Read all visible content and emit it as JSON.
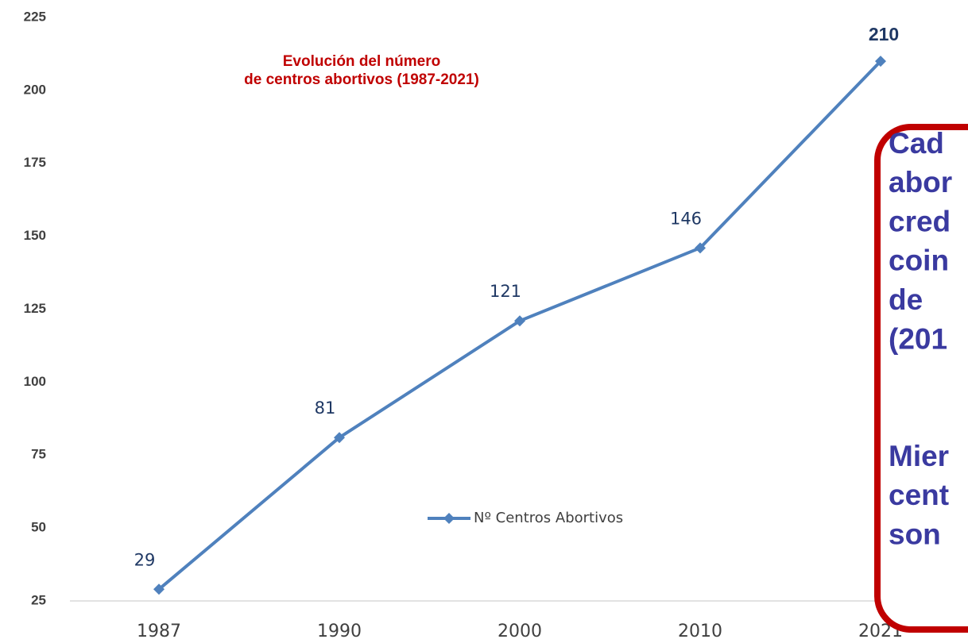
{
  "chart_data": {
    "type": "line",
    "title": [
      "Evolución del número",
      "de centros abortivos (1987-2021)"
    ],
    "categories": [
      "1987",
      "1990",
      "2000",
      "2010",
      "2021"
    ],
    "series": [
      {
        "name": "Nº Centros Abortivos",
        "color": "#4f81bd",
        "values": [
          29,
          81,
          121,
          146,
          210
        ]
      }
    ],
    "ylim": [
      25,
      225
    ],
    "yticks": [
      25,
      50,
      75,
      100,
      125,
      150,
      175,
      200,
      225
    ],
    "grid": false,
    "legend": "center",
    "annotation": [
      [
        "Cad",
        "abor",
        "cred",
        "coin",
        "de",
        "(201"
      ],
      [
        "Mier",
        "cent",
        "son"
      ]
    ]
  }
}
